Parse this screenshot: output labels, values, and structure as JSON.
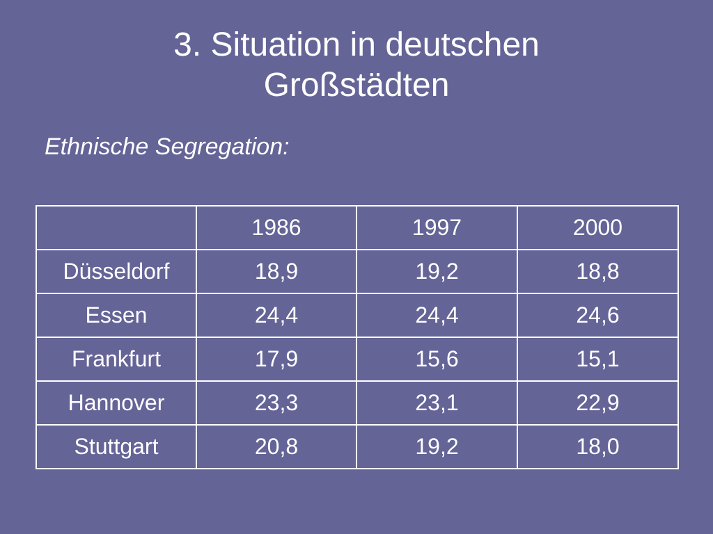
{
  "slide": {
    "title_line1": "3. Situation in deutschen",
    "title_line2": "Großstädten",
    "subtitle": "Ethnische Segregation:"
  },
  "table": {
    "corner": "",
    "columns": [
      "1986",
      "1997",
      "2000"
    ],
    "rows": [
      {
        "city": "Düsseldorf",
        "values": [
          "18,9",
          "19,2",
          "18,8"
        ]
      },
      {
        "city": "Essen",
        "values": [
          "24,4",
          "24,4",
          "24,6"
        ]
      },
      {
        "city": "Frankfurt",
        "values": [
          "17,9",
          "15,6",
          "15,1"
        ]
      },
      {
        "city": "Hannover",
        "values": [
          "23,3",
          "23,1",
          "22,9"
        ]
      },
      {
        "city": "Stuttgart",
        "values": [
          "20,8",
          "19,2",
          "18,0"
        ]
      }
    ]
  },
  "colors": {
    "background": "#656497",
    "text": "#ffffff",
    "table_border": "#ffffff"
  }
}
